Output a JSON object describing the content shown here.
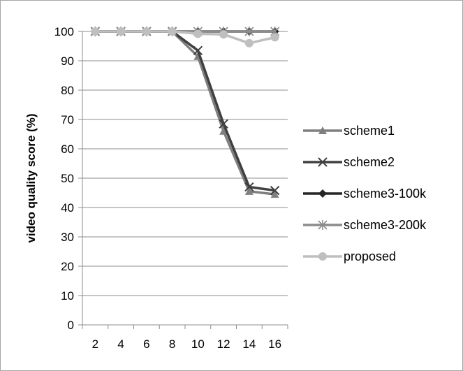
{
  "chart_data": {
    "type": "line",
    "title": "",
    "xlabel": "",
    "ylabel": "video quality score (%)",
    "x": [
      2,
      4,
      6,
      8,
      10,
      12,
      14,
      16
    ],
    "x_ticks": [
      "2",
      "4",
      "6",
      "8",
      "10",
      "12",
      "14",
      "16"
    ],
    "y_ticks": [
      "0",
      "10",
      "20",
      "30",
      "40",
      "50",
      "60",
      "70",
      "80",
      "90",
      "100"
    ],
    "ylim": [
      0,
      100
    ],
    "grid": "horizontal",
    "legend_position": "right",
    "series": [
      {
        "name": "scheme1",
        "marker": "triangle",
        "color": "#7f7f7f",
        "values": [
          100,
          100,
          100,
          100,
          91.5,
          66,
          45.5,
          44.5
        ]
      },
      {
        "name": "scheme2",
        "marker": "x",
        "color": "#404040",
        "values": [
          100,
          100,
          100,
          100,
          93.5,
          68.5,
          47,
          45.8
        ]
      },
      {
        "name": "scheme3-100k",
        "marker": "diamond",
        "color": "#262626",
        "values": [
          100,
          100,
          100,
          100,
          100,
          100,
          100,
          100
        ]
      },
      {
        "name": "scheme3-200k",
        "marker": "star",
        "color": "#8c8c8c",
        "values": [
          100,
          100,
          100,
          100,
          100,
          100,
          100,
          100
        ]
      },
      {
        "name": "proposed",
        "marker": "circle",
        "color": "#bfbfbf",
        "values": [
          100,
          100,
          100,
          100,
          99.2,
          99,
          96,
          98
        ]
      }
    ]
  }
}
